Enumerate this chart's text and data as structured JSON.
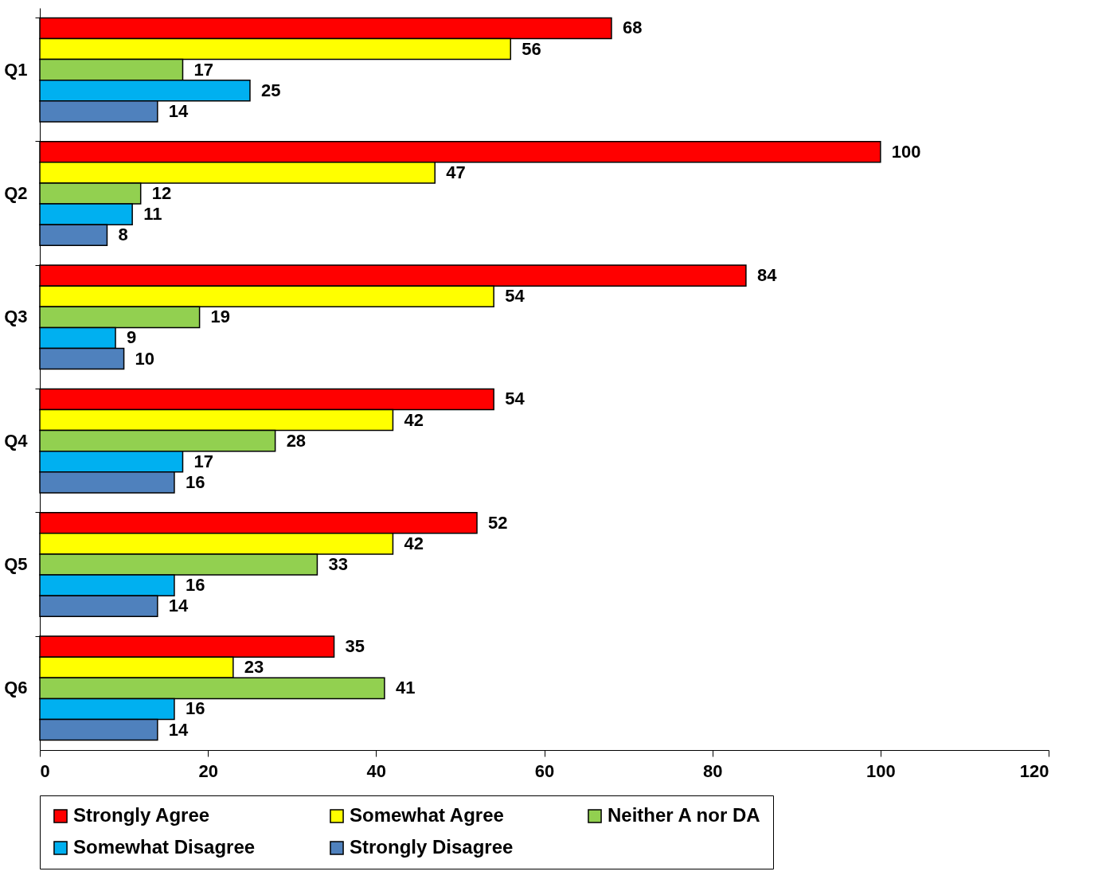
{
  "chart_data": {
    "type": "bar",
    "orientation": "horizontal",
    "categories": [
      "Q1",
      "Q2",
      "Q3",
      "Q4",
      "Q5",
      "Q6"
    ],
    "series": [
      {
        "name": "Strongly Agree",
        "color": "#ff0000",
        "values": [
          68,
          100,
          84,
          54,
          52,
          35
        ]
      },
      {
        "name": "Somewhat Agree",
        "color": "#ffff00",
        "values": [
          56,
          47,
          54,
          42,
          42,
          23
        ]
      },
      {
        "name": "Neither A nor DA",
        "color": "#92d050",
        "values": [
          17,
          12,
          19,
          28,
          33,
          41
        ]
      },
      {
        "name": "Somewhat Disagree",
        "color": "#00b0f0",
        "values": [
          25,
          11,
          9,
          17,
          16,
          16
        ]
      },
      {
        "name": "Strongly Disagree",
        "color": "#4f81bd",
        "values": [
          14,
          8,
          10,
          16,
          14,
          14
        ]
      }
    ],
    "xlim": [
      0,
      120
    ],
    "xticks": [
      0,
      20,
      40,
      60,
      80,
      100,
      120
    ],
    "data_labels": true,
    "grid": false,
    "legend": "bottom"
  }
}
